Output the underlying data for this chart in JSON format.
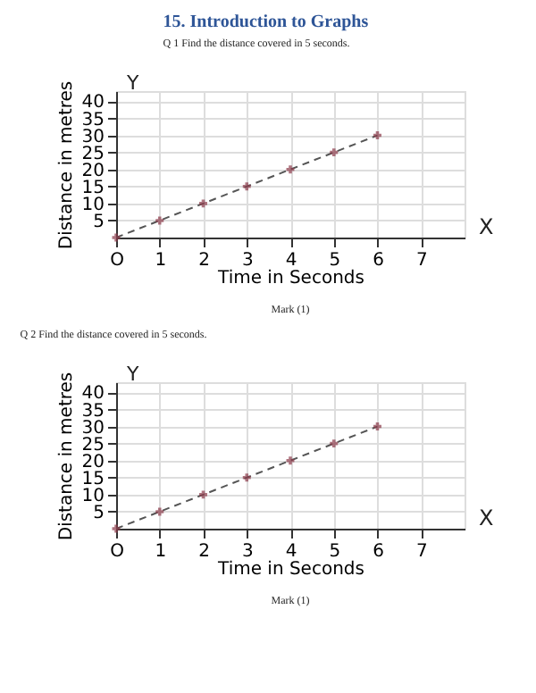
{
  "chart_data": [
    {
      "type": "line",
      "title": "15.    Introduction to Graphs",
      "subtitle": "Q 1 Find the distance covered in 5 seconds.",
      "xlabel": "Time in Seconds",
      "ylabel": "Distance in metres",
      "x": [
        0,
        1,
        2,
        3,
        4,
        5,
        6
      ],
      "series": [
        {
          "color": "#8b3a4a",
          "values": [
            0,
            5,
            10,
            15,
            20,
            25,
            30
          ]
        }
      ],
      "xlim": [
        0,
        8
      ],
      "ylim": [
        0,
        43
      ],
      "xticks": [
        {
          "value": 0,
          "label": "O"
        },
        1,
        2,
        3,
        4,
        5,
        6,
        7
      ],
      "yticks": [
        5,
        10,
        15,
        20,
        25,
        30,
        35,
        40
      ],
      "grid": true,
      "marker": "cross",
      "line_style": "dashed",
      "annotations": [
        "X",
        "Y",
        "Mark (1)"
      ]
    },
    {
      "type": "line",
      "subtitle": "Q 2 Find the distance covered in 5 seconds.",
      "xlabel": "Time in Seconds",
      "ylabel": "Distance in metres",
      "x": [
        0,
        1,
        2,
        3,
        4,
        5,
        6
      ],
      "series": [
        {
          "color": "#8b3a4a",
          "values": [
            0,
            5,
            10,
            15,
            20,
            25,
            30
          ]
        }
      ],
      "xlim": [
        0,
        8
      ],
      "ylim": [
        0,
        43
      ],
      "xticks": [
        {
          "value": 0,
          "label": "O"
        },
        1,
        2,
        3,
        4,
        5,
        6,
        7
      ],
      "yticks": [
        5,
        10,
        15,
        20,
        25,
        30,
        35,
        40
      ],
      "grid": true,
      "marker": "cross",
      "line_style": "dashed",
      "annotations": [
        "X",
        "Y",
        "Mark (1)"
      ]
    }
  ]
}
